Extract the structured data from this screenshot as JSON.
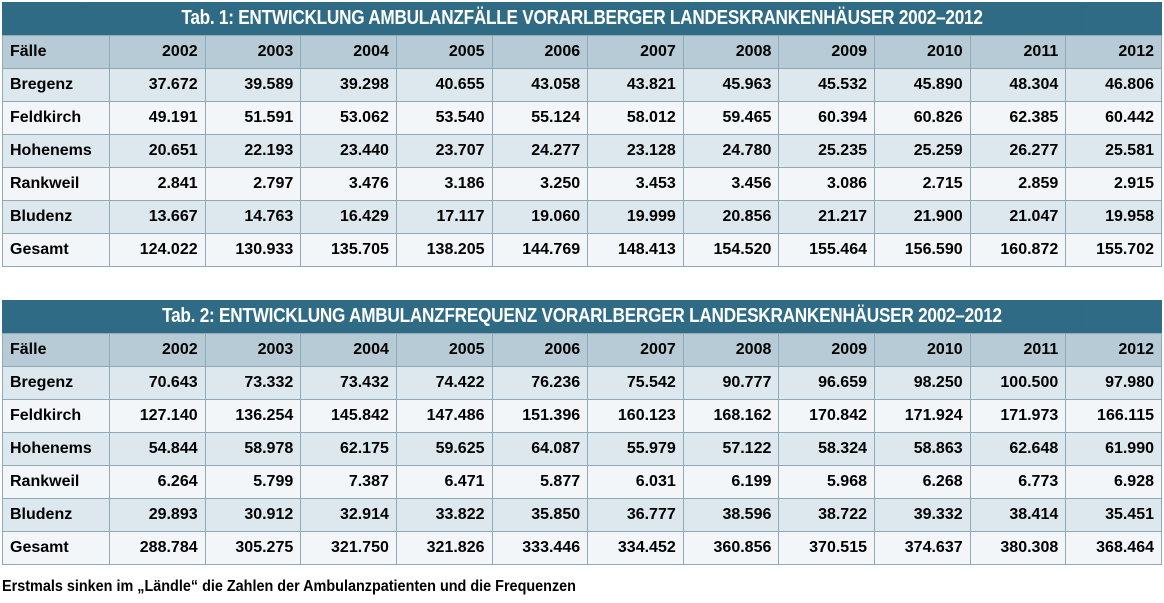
{
  "table1": {
    "title": "Tab. 1: ENTWICKLUNG AMBULANZFÄLLE VORARLBERGER LANDESKRANKENHÄUSER 2002–2012",
    "header": [
      "Fälle",
      "2002",
      "2003",
      "2004",
      "2005",
      "2006",
      "2007",
      "2008",
      "2009",
      "2010",
      "2011",
      "2012"
    ],
    "rows": [
      [
        "Bregenz",
        "37.672",
        "39.589",
        "39.298",
        "40.655",
        "43.058",
        "43.821",
        "45.963",
        "45.532",
        "45.890",
        "48.304",
        "46.806"
      ],
      [
        "Feldkirch",
        "49.191",
        "51.591",
        "53.062",
        "53.540",
        "55.124",
        "58.012",
        "59.465",
        "60.394",
        "60.826",
        "62.385",
        "60.442"
      ],
      [
        "Hohenems",
        "20.651",
        "22.193",
        "23.440",
        "23.707",
        "24.277",
        "23.128",
        "24.780",
        "25.235",
        "25.259",
        "26.277",
        "25.581"
      ],
      [
        "Rankweil",
        "2.841",
        "2.797",
        "3.476",
        "3.186",
        "3.250",
        "3.453",
        "3.456",
        "3.086",
        "2.715",
        "2.859",
        "2.915"
      ],
      [
        "Bludenz",
        "13.667",
        "14.763",
        "16.429",
        "17.117",
        "19.060",
        "19.999",
        "20.856",
        "21.217",
        "21.900",
        "21.047",
        "19.958"
      ],
      [
        "Gesamt",
        "124.022",
        "130.933",
        "135.705",
        "138.205",
        "144.769",
        "148.413",
        "154.520",
        "155.464",
        "156.590",
        "160.872",
        "155.702"
      ]
    ]
  },
  "table2": {
    "title": "Tab. 2: ENTWICKLUNG AMBULANZFREQUENZ VORARLBERGER LANDESKRANKENHÄUSER 2002–2012",
    "header": [
      "Fälle",
      "2002",
      "2003",
      "2004",
      "2005",
      "2006",
      "2007",
      "2008",
      "2009",
      "2010",
      "2011",
      "2012"
    ],
    "rows": [
      [
        "Bregenz",
        "70.643",
        "73.332",
        "73.432",
        "74.422",
        "76.236",
        "75.542",
        "90.777",
        "96.659",
        "98.250",
        "100.500",
        "97.980"
      ],
      [
        "Feldkirch",
        "127.140",
        "136.254",
        "145.842",
        "147.486",
        "151.396",
        "160.123",
        "168.162",
        "170.842",
        "171.924",
        "171.973",
        "166.115"
      ],
      [
        "Hohenems",
        "54.844",
        "58.978",
        "62.175",
        "59.625",
        "64.087",
        "55.979",
        "57.122",
        "58.324",
        "58.863",
        "62.648",
        "61.990"
      ],
      [
        "Rankweil",
        "6.264",
        "5.799",
        "7.387",
        "6.471",
        "5.877",
        "6.031",
        "6.199",
        "5.968",
        "6.268",
        "6.773",
        "6.928"
      ],
      [
        "Bludenz",
        "29.893",
        "30.912",
        "32.914",
        "33.822",
        "35.850",
        "36.777",
        "38.596",
        "38.722",
        "39.332",
        "38.414",
        "35.451"
      ],
      [
        "Gesamt",
        "288.784",
        "305.275",
        "321.750",
        "321.826",
        "333.446",
        "334.452",
        "360.856",
        "370.515",
        "374.637",
        "380.308",
        "368.464"
      ]
    ]
  },
  "caption": "Erstmals sinken im „Ländle“ die Zahlen der Ambulanzpatienten und die Frequenzen",
  "colors": {
    "title_bar": "#2f6b84",
    "header_row": "#b7cbd6",
    "row_odd": "#dde7ee",
    "row_even": "#f2f6f8",
    "grid": "#8fa9b6"
  }
}
